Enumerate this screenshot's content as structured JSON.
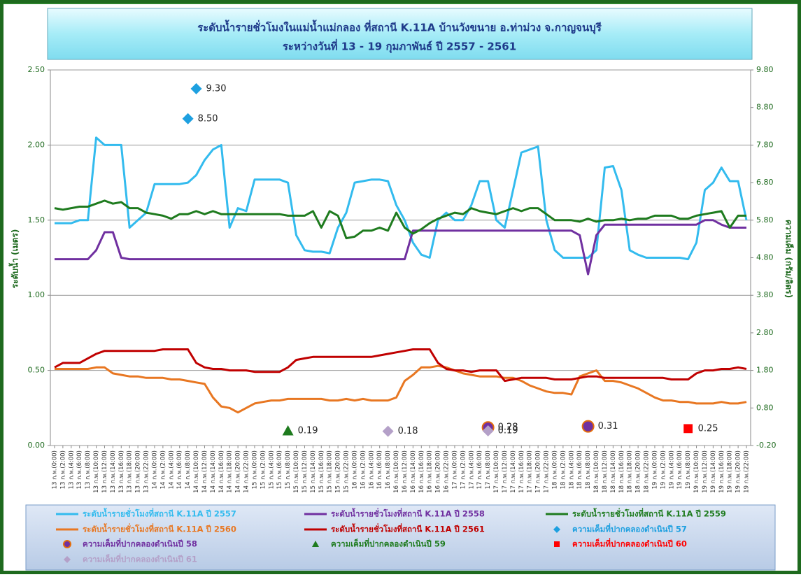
{
  "chart_data": {
    "type": "line",
    "title": "ระดับน้ำรายชั่วโมงในแม่น้ำแม่กลอง ที่สถานี K.11A บ้านวังขนาย อ.ท่าม่วง จ.กาญจนบุรี",
    "subtitle": "ระหว่างวันที่ 13 - 19 กุมภาพันธ์ ปี 2557 - 2561",
    "ylabel": "ระดับน้ำ (เมตร)",
    "y2label": "ความเค็ม (กรัม/ลิตร)",
    "ylim": [
      0,
      2.5
    ],
    "yticks": [
      {
        "value": 0,
        "label": "0.00"
      },
      {
        "value": 0.5,
        "label": "0.50"
      },
      {
        "value": 1,
        "label": "1.00"
      },
      {
        "value": 1.5,
        "label": "1.50"
      },
      {
        "value": 2,
        "label": "2.00"
      },
      {
        "value": 2.5,
        "label": "2.50"
      }
    ],
    "y2lim": [
      -0.2,
      9.8
    ],
    "y2ticks": [
      {
        "value": -0.2,
        "label": "-0.20"
      },
      {
        "value": 0.8,
        "label": "0.80"
      },
      {
        "value": 1.8,
        "label": "1.80"
      },
      {
        "value": 2.8,
        "label": "2.80"
      },
      {
        "value": 3.8,
        "label": "3.80"
      },
      {
        "value": 4.8,
        "label": "4.80"
      },
      {
        "value": 5.8,
        "label": "5.80"
      },
      {
        "value": 6.8,
        "label": "6.80"
      },
      {
        "value": 7.8,
        "label": "7.80"
      },
      {
        "value": 8.8,
        "label": "8.80"
      },
      {
        "value": 9.8,
        "label": "9.80"
      }
    ],
    "grid": true,
    "categories": [
      "13 ก.พ.(0:00)",
      "13 ก.พ.(2:00)",
      "13 ก.พ.(4:00)",
      "13 ก.พ.(6:00)",
      "13 ก.พ.(8:00)",
      "13 ก.พ.(10:00)",
      "13 ก.พ.(12:00)",
      "13 ก.พ.(14:00)",
      "13 ก.พ.(16:00)",
      "13 ก.พ.(18:00)",
      "13 ก.พ.(20:00)",
      "13 ก.พ.(22:00)",
      "14 ก.พ.(0:00)",
      "14 ก.พ.(2:00)",
      "14 ก.พ.(4:00)",
      "14 ก.พ.(6:00)",
      "14 ก.พ.(8:00)",
      "14 ก.พ.(10:00)",
      "14 ก.พ.(12:00)",
      "14 ก.พ.(14:00)",
      "14 ก.พ.(16:00)",
      "14 ก.พ.(18:00)",
      "14 ก.พ.(20:00)",
      "14 ก.พ.(22:00)",
      "15 ก.พ.(0:00)",
      "15 ก.พ.(2:00)",
      "15 ก.พ.(4:00)",
      "15 ก.พ.(6:00)",
      "15 ก.พ.(8:00)",
      "15 ก.พ.(10:00)",
      "15 ก.พ.(12:00)",
      "15 ก.พ.(14:00)",
      "15 ก.พ.(16:00)",
      "15 ก.พ.(18:00)",
      "15 ก.พ.(20:00)",
      "15 ก.พ.(22:00)",
      "16 ก.พ.(0:00)",
      "16 ก.พ.(2:00)",
      "16 ก.พ.(4:00)",
      "16 ก.พ.(6:00)",
      "16 ก.พ.(8:00)",
      "16 ก.พ.(10:00)",
      "16 ก.พ.(12:00)",
      "16 ก.พ.(14:00)",
      "16 ก.พ.(16:00)",
      "16 ก.พ.(18:00)",
      "16 ก.พ.(20:00)",
      "16 ก.พ.(22:00)",
      "17 ก.พ.(0:00)",
      "17 ก.พ.(2:00)",
      "17 ก.พ.(4:00)",
      "17 ก.พ.(6:00)",
      "17 ก.พ.(8:00)",
      "17 ก.พ.(10:00)",
      "17 ก.พ.(12:00)",
      "17 ก.พ.(14:00)",
      "17 ก.พ.(16:00)",
      "17 ก.พ.(18:00)",
      "17 ก.พ.(20:00)",
      "17 ก.พ.(22:00)",
      "18 ก.พ.(0:00)",
      "18 ก.พ.(2:00)",
      "18 ก.พ.(4:00)",
      "18 ก.พ.(6:00)",
      "18 ก.พ.(8:00)",
      "18 ก.พ.(10:00)",
      "18 ก.พ.(12:00)",
      "18 ก.พ.(14:00)",
      "18 ก.พ.(16:00)",
      "18 ก.พ.(18:00)",
      "18 ก.พ.(20:00)",
      "18 ก.พ.(22:00)",
      "19 ก.พ.(0:00)",
      "19 ก.พ.(2:00)",
      "19 ก.พ.(4:00)",
      "19 ก.พ.(6:00)",
      "19 ก.พ.(8:00)",
      "19 ก.พ.(10:00)",
      "19 ก.พ.(12:00)",
      "19 ก.พ.(14:00)",
      "19 ก.พ.(16:00)",
      "19 ก.พ.(18:00)",
      "19 ก.พ.(20:00)",
      "19 ก.พ.(22:00)"
    ],
    "series": [
      {
        "name": "ระดับน้ำรายชั่วโมงที่สถานี K.11A ปี 2557",
        "color": "#33bbee",
        "values": [
          1.48,
          1.48,
          1.48,
          1.5,
          1.5,
          2.05,
          2,
          2,
          2,
          1.45,
          1.5,
          1.55,
          1.74,
          1.74,
          1.74,
          1.74,
          1.75,
          1.8,
          1.9,
          1.97,
          2,
          1.45,
          1.58,
          1.56,
          1.77,
          1.77,
          1.77,
          1.77,
          1.75,
          1.4,
          1.3,
          1.29,
          1.29,
          1.28,
          1.45,
          1.55,
          1.75,
          1.76,
          1.77,
          1.77,
          1.76,
          1.6,
          1.5,
          1.35,
          1.27,
          1.25,
          1.5,
          1.55,
          1.5,
          1.5,
          1.6,
          1.76,
          1.76,
          1.5,
          1.45,
          1.7,
          1.95,
          1.97,
          1.99,
          1.5,
          1.3,
          1.25,
          1.25,
          1.25,
          1.25,
          1.3,
          1.85,
          1.86,
          1.7,
          1.3,
          1.27,
          1.25,
          1.25,
          1.25,
          1.25,
          1.25,
          1.24,
          1.35,
          1.7,
          1.75,
          1.85,
          1.76,
          1.76,
          1.5
        ]
      },
      {
        "name": "ระดับน้ำรายชั่วโมงที่สถานี K.11A ปี 2558",
        "color": "#7030a0",
        "values": [
          1.24,
          1.24,
          1.24,
          1.24,
          1.24,
          1.3,
          1.42,
          1.42,
          1.25,
          1.24,
          1.24,
          1.24,
          1.24,
          1.24,
          1.24,
          1.24,
          1.24,
          1.24,
          1.24,
          1.24,
          1.24,
          1.24,
          1.24,
          1.24,
          1.24,
          1.24,
          1.24,
          1.24,
          1.24,
          1.24,
          1.24,
          1.24,
          1.24,
          1.24,
          1.24,
          1.24,
          1.24,
          1.24,
          1.24,
          1.24,
          1.24,
          1.24,
          1.24,
          1.43,
          1.43,
          1.43,
          1.43,
          1.43,
          1.43,
          1.43,
          1.43,
          1.43,
          1.43,
          1.43,
          1.43,
          1.43,
          1.43,
          1.43,
          1.43,
          1.43,
          1.43,
          1.43,
          1.43,
          1.4,
          1.14,
          1.4,
          1.47,
          1.47,
          1.47,
          1.47,
          1.47,
          1.47,
          1.47,
          1.47,
          1.47,
          1.47,
          1.47,
          1.47,
          1.5,
          1.5,
          1.47,
          1.45,
          1.45,
          1.45
        ]
      },
      {
        "name": "ระดับน้ำรายชั่วโมงที่สถานี K.11A ปี 2559",
        "color": "#1e7b1e",
        "values": [
          1.58,
          1.57,
          1.58,
          1.59,
          1.59,
          1.61,
          1.63,
          1.61,
          1.62,
          1.58,
          1.58,
          1.55,
          1.54,
          1.53,
          1.51,
          1.54,
          1.54,
          1.56,
          1.54,
          1.56,
          1.54,
          1.54,
          1.54,
          1.54,
          1.54,
          1.54,
          1.54,
          1.54,
          1.53,
          1.53,
          1.53,
          1.56,
          1.45,
          1.56,
          1.53,
          1.38,
          1.39,
          1.43,
          1.43,
          1.45,
          1.43,
          1.55,
          1.45,
          1.41,
          1.44,
          1.48,
          1.51,
          1.53,
          1.55,
          1.54,
          1.58,
          1.56,
          1.55,
          1.54,
          1.56,
          1.58,
          1.56,
          1.58,
          1.58,
          1.54,
          1.5,
          1.5,
          1.5,
          1.49,
          1.51,
          1.49,
          1.5,
          1.5,
          1.51,
          1.5,
          1.51,
          1.51,
          1.53,
          1.53,
          1.53,
          1.51,
          1.51,
          1.53,
          1.54,
          1.55,
          1.56,
          1.45,
          1.53,
          1.53
        ]
      },
      {
        "name": "ระดับน้ำรายชั่วโมงที่สถานี K.11A ปี 2560",
        "color": "#e87722",
        "values": [
          0.51,
          0.51,
          0.51,
          0.51,
          0.51,
          0.52,
          0.52,
          0.48,
          0.47,
          0.46,
          0.46,
          0.45,
          0.45,
          0.45,
          0.44,
          0.44,
          0.43,
          0.42,
          0.41,
          0.32,
          0.26,
          0.25,
          0.22,
          0.25,
          0.28,
          0.29,
          0.3,
          0.3,
          0.31,
          0.31,
          0.31,
          0.31,
          0.31,
          0.3,
          0.3,
          0.31,
          0.3,
          0.31,
          0.3,
          0.3,
          0.3,
          0.32,
          0.43,
          0.47,
          0.52,
          0.52,
          0.53,
          0.52,
          0.5,
          0.48,
          0.47,
          0.46,
          0.46,
          0.46,
          0.45,
          0.45,
          0.43,
          0.4,
          0.38,
          0.36,
          0.35,
          0.35,
          0.34,
          0.46,
          0.48,
          0.5,
          0.43,
          0.43,
          0.42,
          0.4,
          0.38,
          0.35,
          0.32,
          0.3,
          0.3,
          0.29,
          0.29,
          0.28,
          0.28,
          0.28,
          0.29,
          0.28,
          0.28,
          0.29
        ]
      },
      {
        "name": "ระดับน้ำรายชั่วโมงที่สถานี K.11A ปี 2561",
        "color": "#c00000",
        "values": [
          0.52,
          0.55,
          0.55,
          0.55,
          0.58,
          0.61,
          0.63,
          0.63,
          0.63,
          0.63,
          0.63,
          0.63,
          0.63,
          0.64,
          0.64,
          0.64,
          0.64,
          0.55,
          0.52,
          0.51,
          0.51,
          0.5,
          0.5,
          0.5,
          0.49,
          0.49,
          0.49,
          0.49,
          0.52,
          0.57,
          0.58,
          0.59,
          0.59,
          0.59,
          0.59,
          0.59,
          0.59,
          0.59,
          0.59,
          0.6,
          0.61,
          0.62,
          0.63,
          0.64,
          0.64,
          0.64,
          0.55,
          0.51,
          0.5,
          0.5,
          0.49,
          0.5,
          0.5,
          0.5,
          0.43,
          0.44,
          0.45,
          0.45,
          0.45,
          0.45,
          0.44,
          0.44,
          0.44,
          0.45,
          0.46,
          0.46,
          0.45,
          0.45,
          0.45,
          0.45,
          0.45,
          0.45,
          0.45,
          0.45,
          0.44,
          0.44,
          0.44,
          0.48,
          0.5,
          0.5,
          0.51,
          0.51,
          0.52,
          0.51
        ]
      },
      {
        "name": "ความเค็มที่ปากคลองดำเนินปี 57",
        "type": "scatter",
        "axis": "y2",
        "marker": "diamond",
        "color": "#1ea0e0",
        "x": [
          "14 ก.พ.(10:00)",
          "14 ก.พ.(8:00)"
        ],
        "values": [
          9.3,
          8.5
        ],
        "value_labels": [
          "9.30",
          "8.50"
        ]
      },
      {
        "name": "ความเค็มที่ปากคลองดำเนินปี 58",
        "type": "scatter",
        "axis": "y2",
        "marker": "circle",
        "color": "#7030a0",
        "edgecolor": "#e46c0a",
        "x": [
          "17 ก.พ.(8:00)",
          "18 ก.พ.(8:00)"
        ],
        "values": [
          0.28,
          0.31
        ]
      },
      {
        "name": "ความเค็มที่ปากคลองดำเนินปี 59",
        "type": "scatter",
        "axis": "y2",
        "marker": "triangle",
        "color": "#1e7b1e",
        "x": [
          "15 ก.พ.(8:00)"
        ],
        "values": [
          0.19
        ]
      },
      {
        "name": "ความเค็มที่ปากคลองดำเนินปี 60",
        "type": "scatter",
        "axis": "y2",
        "marker": "square",
        "color": "#ff0000",
        "x": [
          "19 ก.พ.(8:00)"
        ],
        "values": [
          0.25
        ]
      },
      {
        "name": "ความเค็มที่ปากคลองดำเนินปี 61",
        "type": "scatter",
        "axis": "y2",
        "marker": "diamond",
        "color": "#b4a0c8",
        "x": [
          "16 ก.พ.(8:00)",
          "17 ก.พ.(8:00)"
        ],
        "values": [
          0.18,
          0.19
        ]
      }
    ]
  }
}
